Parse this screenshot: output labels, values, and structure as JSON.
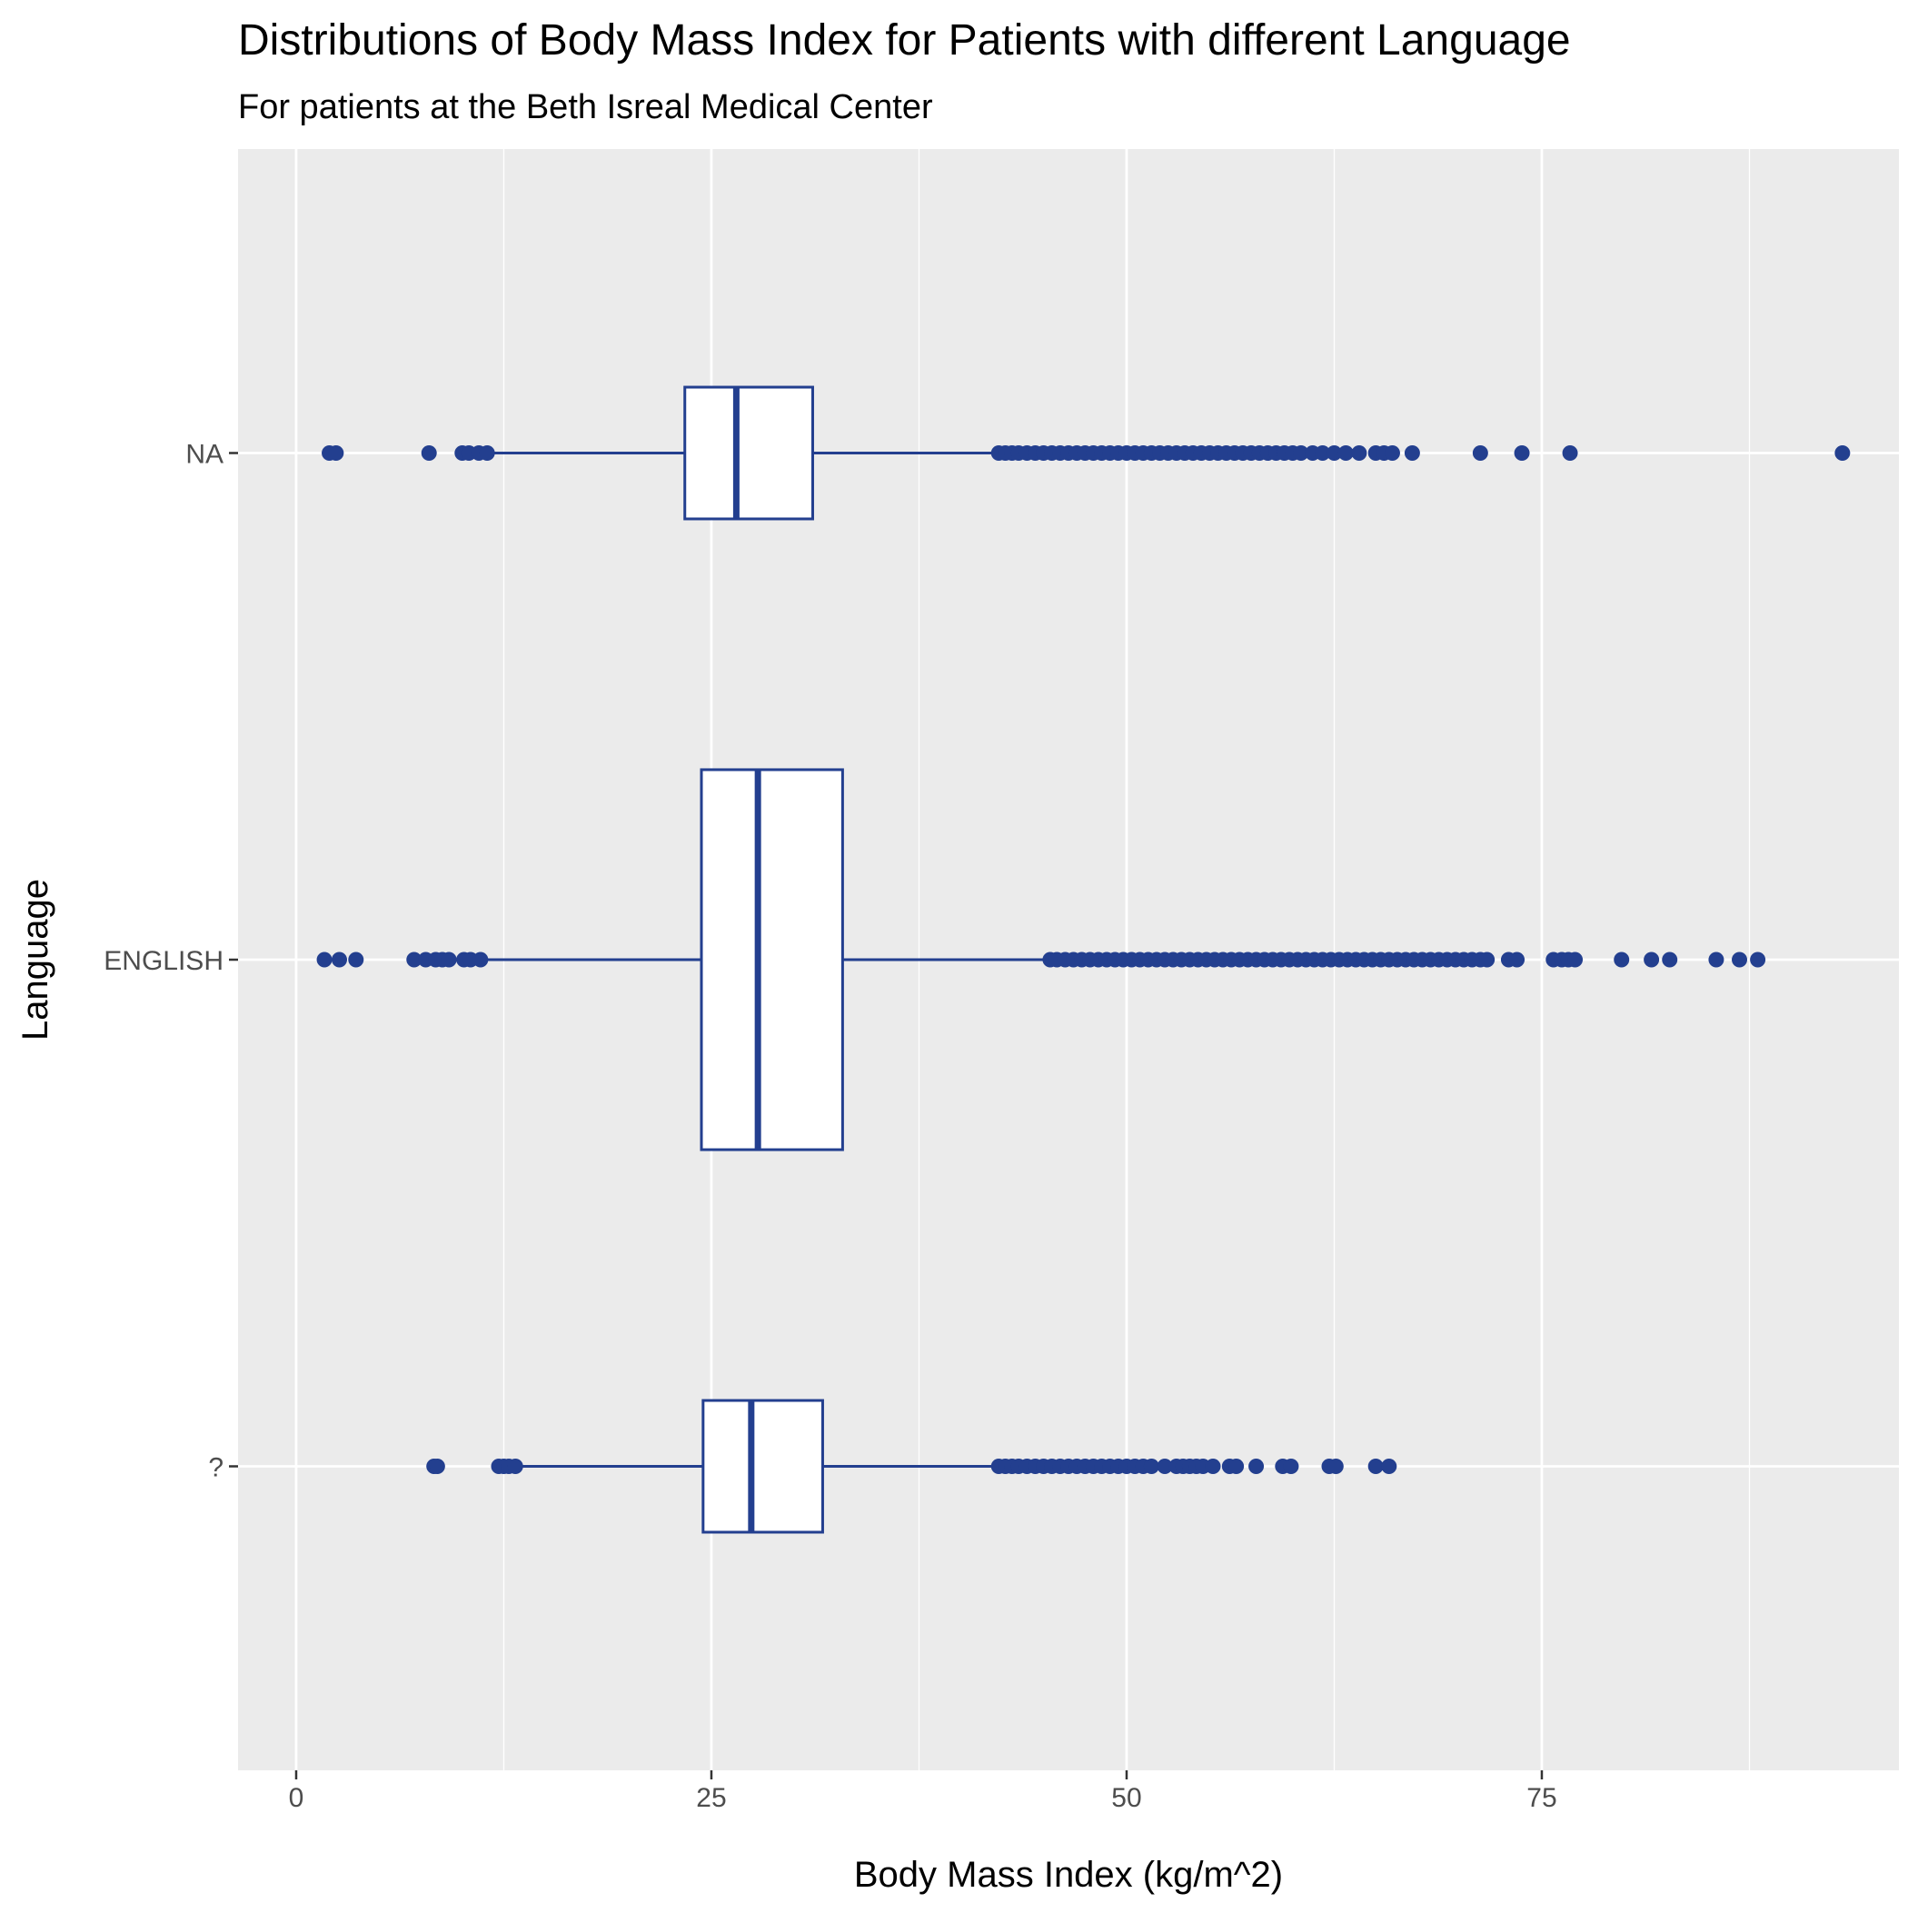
{
  "chart_data": {
    "type": "boxplot",
    "orientation": "horizontal",
    "title": "Distributions of Body Mass Index for Patients with different Language",
    "subtitle": "For patients at the Beth Isreal Medical Center",
    "xlabel": "Body Mass Index (kg/m^2)",
    "ylabel": "Language",
    "xlim": [
      -3.5,
      96.5
    ],
    "xticks": [
      0,
      25,
      50,
      75
    ],
    "xtick_labels": [
      "0",
      "25",
      "50",
      "75"
    ],
    "categories": [
      "?",
      "ENGLISH",
      "NA"
    ],
    "grid": true,
    "legend": "none",
    "colors": {
      "box_outline": "#233f8f",
      "box_fill": "#ffffff",
      "outlier": "#233f8f",
      "panel_background": "#ebebeb",
      "grid": "#ffffff"
    },
    "boxes": [
      {
        "category": "?",
        "whisker_low": 13.3,
        "q1": 24.5,
        "median": 27.4,
        "q3": 31.7,
        "whisker_high": 42.3,
        "outliers": [
          8.3,
          8.5,
          12.2,
          12.5,
          12.8,
          13.2,
          42.3,
          42.7,
          43.1,
          43.5,
          44.0,
          44.5,
          45.0,
          45.5,
          46.0,
          46.5,
          47.0,
          47.5,
          48.0,
          48.5,
          49.0,
          49.5,
          50.0,
          50.5,
          51.0,
          51.5,
          52.3,
          53.0,
          53.4,
          53.8,
          54.2,
          54.6,
          55.2,
          56.2,
          56.6,
          57.8,
          59.4,
          59.9,
          62.2,
          62.6,
          65.0,
          65.8
        ]
      },
      {
        "category": "ENGLISH",
        "whisker_low": 11.1,
        "q1": 24.4,
        "median": 27.8,
        "q3": 32.9,
        "whisker_high": 45.4,
        "outliers": [
          1.7,
          2.6,
          3.6,
          7.1,
          7.8,
          8.4,
          8.8,
          9.2,
          10.1,
          10.5,
          11.1,
          45.4,
          45.8,
          46.3,
          46.8,
          47.3,
          47.8,
          48.3,
          48.8,
          49.3,
          49.8,
          50.3,
          50.8,
          51.3,
          51.8,
          52.3,
          52.8,
          53.3,
          53.8,
          54.3,
          54.8,
          55.3,
          55.8,
          56.3,
          56.8,
          57.3,
          57.8,
          58.3,
          58.8,
          59.3,
          59.8,
          60.3,
          60.8,
          61.3,
          61.8,
          62.3,
          62.8,
          63.3,
          63.8,
          64.3,
          64.8,
          65.3,
          65.8,
          66.3,
          66.8,
          67.3,
          67.8,
          68.3,
          68.8,
          69.3,
          69.8,
          70.3,
          70.8,
          71.3,
          71.7,
          73.0,
          73.5,
          75.7,
          76.2,
          76.6,
          77.0,
          79.8,
          81.6,
          82.7,
          85.5,
          86.9,
          88.0
        ]
      },
      {
        "category": "NA",
        "whisker_low": 11.5,
        "q1": 23.4,
        "median": 26.5,
        "q3": 31.1,
        "whisker_high": 42.3,
        "outliers": [
          2.0,
          2.4,
          8.0,
          10.0,
          10.4,
          11.0,
          11.5,
          42.3,
          42.7,
          43.1,
          43.5,
          44.0,
          44.5,
          45.0,
          45.5,
          46.0,
          46.5,
          47.0,
          47.5,
          48.0,
          48.5,
          49.0,
          49.5,
          50.0,
          50.5,
          51.0,
          51.5,
          52.0,
          52.5,
          53.0,
          53.5,
          54.0,
          54.5,
          55.0,
          55.5,
          56.0,
          56.5,
          57.0,
          57.5,
          58.0,
          58.5,
          59.0,
          59.5,
          60.0,
          60.5,
          61.2,
          61.8,
          62.5,
          63.2,
          64.0,
          65.0,
          65.5,
          66.0,
          67.2,
          71.3,
          73.8,
          76.7,
          93.1
        ]
      }
    ]
  }
}
